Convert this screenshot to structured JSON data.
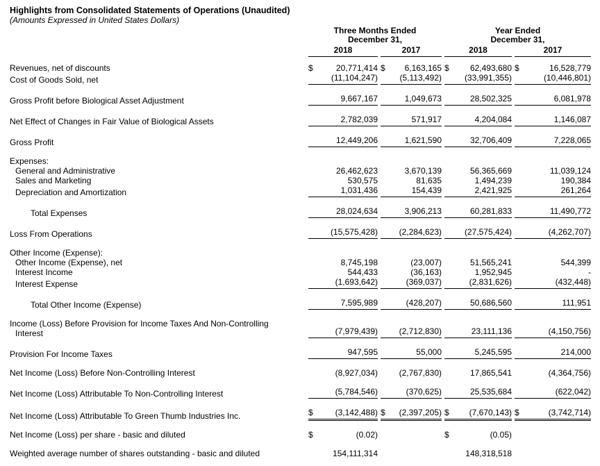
{
  "page": {
    "title": "Highlights from Consolidated Statements of Operations (Unaudited)",
    "subtitle": "(Amounts Expressed in United States Dollars)"
  },
  "colors": {
    "text": "#000000",
    "background": "#ffffff",
    "rule": "#000000"
  },
  "table": {
    "column_groups": [
      {
        "line1": "Three Months Ended",
        "line2": "December 31,"
      },
      {
        "line1": "Year Ended",
        "line2": "December 31,"
      }
    ],
    "year_headers": [
      "2018",
      "2017",
      "2018",
      "2017"
    ],
    "rows": [
      {
        "label": "Revenues, net of discounts",
        "indent": 0,
        "values": [
          "20,771,414",
          "6,163,165",
          "62,493,680",
          "16,528,779"
        ],
        "dollars": [
          true,
          true,
          true,
          true
        ]
      },
      {
        "label": "Cost of Goods Sold, net",
        "indent": 0,
        "values": [
          "(11,104,247)",
          "(5,113,492)",
          "(33,991,355)",
          "(10,446,801)"
        ],
        "underline": true,
        "gap_after": true
      },
      {
        "label": "Gross Profit before Biological Asset Adjustment",
        "indent": 0,
        "values": [
          "9,667,167",
          "1,049,673",
          "28,502,325",
          "6,081,978"
        ],
        "underline": true,
        "gap_after": true
      },
      {
        "label": "Net Effect of Changes in Fair Value of Biological Assets",
        "indent": 0,
        "values": [
          "2,782,039",
          "571,917",
          "4,204,084",
          "1,146,087"
        ],
        "underline": true,
        "gap_after": true
      },
      {
        "label": "Gross Profit",
        "indent": 0,
        "values": [
          "12,449,206",
          "1,621,590",
          "32,706,409",
          "7,228,065"
        ],
        "underline": true,
        "gap_after": true
      },
      {
        "label": "Expenses:",
        "indent": 0,
        "values": null
      },
      {
        "label": "General and Administrative",
        "indent": 1,
        "values": [
          "26,462,623",
          "3,670,139",
          "56,365,669",
          "11,039,124"
        ]
      },
      {
        "label": "Sales and Marketing",
        "indent": 1,
        "values": [
          "530,575",
          "81,635",
          "1,494,239",
          "190,384"
        ]
      },
      {
        "label": "Depreciation and Amortization",
        "indent": 1,
        "values": [
          "1,031,436",
          "154,439",
          "2,421,925",
          "261,264"
        ],
        "underline": true,
        "gap_after": true
      },
      {
        "label": "Total Expenses",
        "indent": 2,
        "values": [
          "28,024,634",
          "3,906,213",
          "60,281,833",
          "11,490,772"
        ],
        "underline": true,
        "gap_after": true
      },
      {
        "label": "Loss From Operations",
        "indent": 0,
        "values": [
          "(15,575,428)",
          "(2,284,623)",
          "(27,575,424)",
          "(4,262,707)"
        ],
        "underline": true,
        "gap_after": true
      },
      {
        "label": "Other Income (Expense):",
        "indent": 0,
        "values": null
      },
      {
        "label": "Other Income (Expense), net",
        "indent": 1,
        "values": [
          "8,745,198",
          "(23,007)",
          "51,565,241",
          "544,399"
        ]
      },
      {
        "label": "Interest Income",
        "indent": 1,
        "values": [
          "544,433",
          "(36,163)",
          "1,952,945",
          "-"
        ]
      },
      {
        "label": "Interest Expense",
        "indent": 1,
        "values": [
          "(1,693,642)",
          "(369,037)",
          "(2,831,626)",
          "(432,448)"
        ],
        "underline": true,
        "gap_after": true
      },
      {
        "label": "Total Other Income (Expense)",
        "indent": 2,
        "values": [
          "7,595,989",
          "(428,207)",
          "50,686,560",
          "111,951"
        ],
        "underline": true,
        "gap_after": true
      },
      {
        "label": "Income (Loss) Before Provision for Income Taxes And Non-Controlling",
        "label2": "Interest",
        "indent": 0,
        "values": [
          "(7,979,439)",
          "(2,712,830)",
          "23,111,136",
          "(4,150,756)"
        ],
        "underline": true,
        "gap_after": true
      },
      {
        "label": "Provision For Income Taxes",
        "indent": 0,
        "values": [
          "947,595",
          "55,000",
          "5,245,595",
          "214,000"
        ],
        "underline": true,
        "gap_after": true
      },
      {
        "label": "Net Income (Loss) Before Non-Controlling Interest",
        "indent": 0,
        "values": [
          "(8,927,034)",
          "(2,767,830)",
          "17,865,541",
          "(4,364,756)"
        ],
        "gap_after": true
      },
      {
        "label": "Net Income (Loss) Attributable To Non-Controlling Interest",
        "indent": 0,
        "values": [
          "(5,784,546)",
          "(370,625)",
          "25,535,684",
          "(622,042)"
        ],
        "underline": true,
        "gap_after": true
      },
      {
        "label": "Net Income (Loss) Attributable To Green Thumb Industries Inc.",
        "indent": 0,
        "values": [
          "(3,142,488)",
          "(2,397,205)",
          "(7,670,143)",
          "(3,742,714)"
        ],
        "dollars": [
          true,
          true,
          true,
          true
        ],
        "double_underline": true,
        "gap_after": true
      },
      {
        "label": "Net Income (Loss) per share - basic and diluted",
        "indent": 0,
        "values": [
          "(0.02)",
          "",
          "(0.05)",
          ""
        ],
        "dollars": [
          true,
          false,
          true,
          false
        ],
        "gap_after": true
      },
      {
        "label": "Weighted average number of shares outstanding - basic and diluted",
        "indent": 0,
        "values": [
          "154,111,314",
          "",
          "148,318,518",
          ""
        ]
      }
    ]
  }
}
